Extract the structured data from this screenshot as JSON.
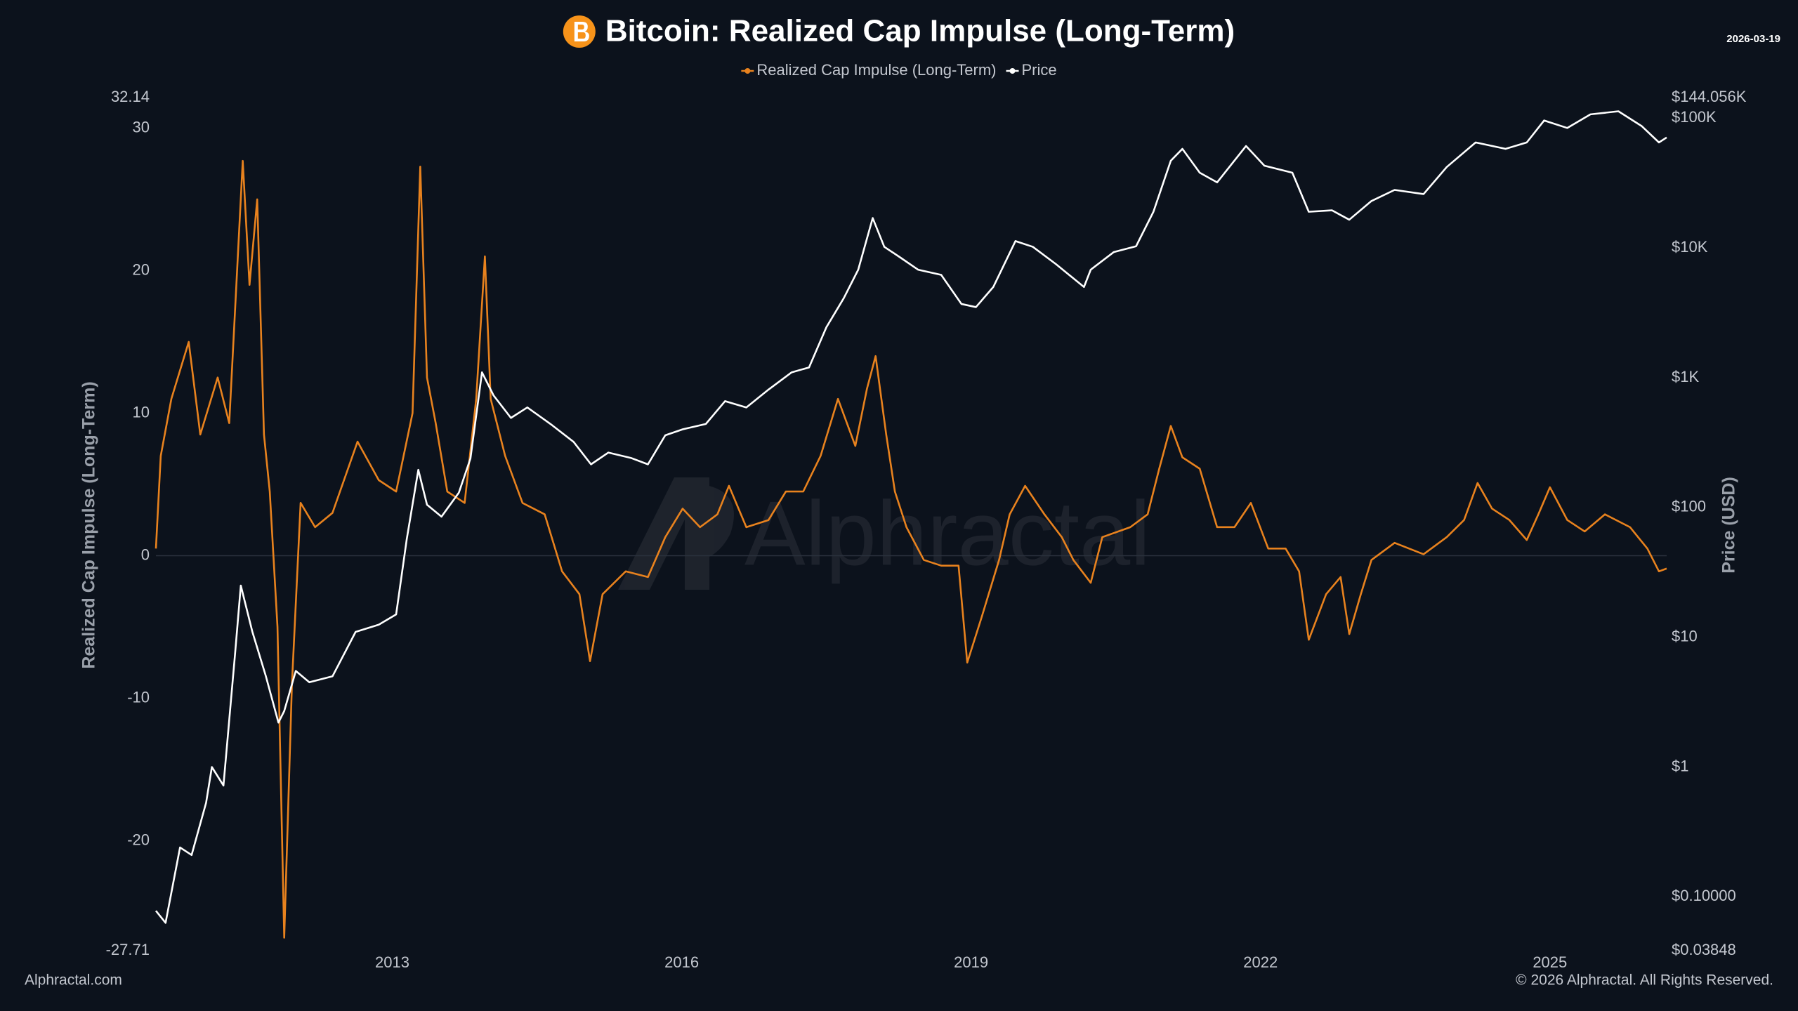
{
  "chart_data": {
    "type": "line",
    "title": "Bitcoin: Realized Cap Impulse (Long-Term)",
    "date": "2026-03-19",
    "watermark": "Alphractal",
    "source": "Alphractal.com",
    "copyright": "© 2026 Alphractal. All Rights Reserved.",
    "y_label": "Realized Cap Impulse (Long-Term)",
    "y2_label": "Price (USD)",
    "xlim": [
      2010.55,
      2026.21
    ],
    "xticks": [
      2013,
      2016,
      2019,
      2022,
      2025
    ],
    "ylim": [
      -27.71,
      32.14
    ],
    "yticks": [
      -27.71,
      -20,
      -10,
      0,
      10,
      20,
      30,
      32.14
    ],
    "y2lim": [
      0.03848,
      144056
    ],
    "y2scale": "log",
    "y2ticks": [
      {
        "value": 0.03848,
        "label": "$0.03848"
      },
      {
        "value": 0.1,
        "label": "$0.10000"
      },
      {
        "value": 1,
        "label": "$1"
      },
      {
        "value": 10,
        "label": "$10"
      },
      {
        "value": 100,
        "label": "$100"
      },
      {
        "value": 1000,
        "label": "$1K"
      },
      {
        "value": 10000,
        "label": "$10K"
      },
      {
        "value": 100000,
        "label": "$100K"
      },
      {
        "value": 144056,
        "label": "$144.056K"
      }
    ],
    "zero_line": true,
    "legend": "top",
    "series": [
      {
        "name": "Realized Cap Impulse (Long-Term)",
        "color": "#e8821e",
        "axis": "y",
        "x": [
          2010.55,
          2010.6,
          2010.71,
          2010.89,
          2011.01,
          2011.19,
          2011.31,
          2011.45,
          2011.52,
          2011.6,
          2011.67,
          2011.73,
          2011.81,
          2011.88,
          2011.96,
          2012.05,
          2012.2,
          2012.38,
          2012.64,
          2012.86,
          2013.04,
          2013.21,
          2013.29,
          2013.36,
          2013.45,
          2013.57,
          2013.75,
          2013.87,
          2013.96,
          2014.02,
          2014.17,
          2014.35,
          2014.58,
          2014.76,
          2014.94,
          2015.05,
          2015.18,
          2015.42,
          2015.65,
          2015.83,
          2016.01,
          2016.19,
          2016.37,
          2016.49,
          2016.67,
          2016.9,
          2017.08,
          2017.26,
          2017.44,
          2017.62,
          2017.8,
          2017.92,
          2018.01,
          2018.12,
          2018.21,
          2018.33,
          2018.51,
          2018.69,
          2018.87,
          2018.96,
          2019.11,
          2019.29,
          2019.4,
          2019.56,
          2019.76,
          2019.94,
          2020.06,
          2020.24,
          2020.36,
          2020.65,
          2020.83,
          2020.95,
          2021.07,
          2021.19,
          2021.37,
          2021.55,
          2021.73,
          2021.9,
          2022.08,
          2022.26,
          2022.4,
          2022.5,
          2022.68,
          2022.83,
          2022.92,
          2023.04,
          2023.15,
          2023.39,
          2023.69,
          2023.93,
          2024.11,
          2024.25,
          2024.4,
          2024.58,
          2024.76,
          2024.88,
          2025.0,
          2025.18,
          2025.36,
          2025.57,
          2025.83,
          2026.01,
          2026.13,
          2026.21
        ],
        "values": [
          0.5,
          7,
          11,
          15,
          8.5,
          12.5,
          9.3,
          27.7,
          19,
          25,
          8.5,
          4.5,
          -5,
          -26.8,
          -9,
          3.7,
          2,
          3,
          8,
          5.3,
          4.5,
          10,
          27.3,
          12.5,
          9.3,
          4.5,
          3.7,
          11,
          21,
          11,
          7,
          3.7,
          2.9,
          -1.1,
          -2.7,
          -7.4,
          -2.7,
          -1.1,
          -1.5,
          1.3,
          3.3,
          2,
          2.9,
          4.9,
          2,
          2.5,
          4.5,
          4.5,
          7,
          11,
          7.7,
          11.7,
          14,
          8.5,
          4.5,
          2,
          -0.3,
          -0.7,
          -0.7,
          -7.5,
          -4.3,
          -0.3,
          2.9,
          4.9,
          2.9,
          1.3,
          -0.3,
          -1.9,
          1.3,
          2,
          2.9,
          6.1,
          9.1,
          6.9,
          6.1,
          2,
          2,
          3.7,
          0.5,
          0.5,
          -1.1,
          -5.9,
          -2.7,
          -1.5,
          -5.5,
          -2.7,
          -0.3,
          0.9,
          0.1,
          1.3,
          2.5,
          5.1,
          3.3,
          2.5,
          1.1,
          2.9,
          4.8,
          2.5,
          1.7,
          2.9,
          2,
          0.5,
          -1.1,
          -0.9
        ]
      },
      {
        "name": "Price",
        "color": "#ffffff",
        "axis": "y2",
        "x": [
          2010.55,
          2010.65,
          2010.8,
          2010.92,
          2011.07,
          2011.13,
          2011.25,
          2011.37,
          2011.43,
          2011.55,
          2011.69,
          2011.82,
          2011.88,
          2012.0,
          2012.14,
          2012.38,
          2012.62,
          2012.86,
          2013.04,
          2013.15,
          2013.27,
          2013.36,
          2013.51,
          2013.69,
          2013.81,
          2013.93,
          2014.05,
          2014.23,
          2014.4,
          2014.64,
          2014.88,
          2015.06,
          2015.24,
          2015.48,
          2015.65,
          2015.83,
          2016.01,
          2016.25,
          2016.45,
          2016.67,
          2016.9,
          2017.14,
          2017.32,
          2017.5,
          2017.68,
          2017.83,
          2017.98,
          2018.1,
          2018.27,
          2018.45,
          2018.69,
          2018.9,
          2019.05,
          2019.23,
          2019.46,
          2019.64,
          2019.88,
          2020.17,
          2020.24,
          2020.48,
          2020.71,
          2020.89,
          2021.07,
          2021.19,
          2021.37,
          2021.55,
          2021.85,
          2022.04,
          2022.33,
          2022.5,
          2022.74,
          2022.92,
          2023.15,
          2023.39,
          2023.69,
          2023.93,
          2024.23,
          2024.54,
          2024.76,
          2024.94,
          2025.18,
          2025.42,
          2025.71,
          2025.95,
          2026.13,
          2026.21
        ],
        "values": [
          0.078,
          0.063,
          0.24,
          0.21,
          0.53,
          1,
          0.72,
          7.4,
          25,
          11,
          5,
          2.2,
          2.7,
          5.5,
          4.5,
          5,
          11,
          12.5,
          15,
          57,
          195,
          105,
          85,
          130,
          238,
          1100,
          730,
          490,
          590,
          440,
          320,
          215,
          265,
          240,
          215,
          360,
          400,
          440,
          660,
          590,
          810,
          1100,
          1200,
          2450,
          4100,
          6800,
          17000,
          10200,
          8400,
          6800,
          6200,
          3700,
          3500,
          5000,
          11300,
          10200,
          7500,
          5000,
          6800,
          9300,
          10300,
          19000,
          47000,
          58000,
          38000,
          32000,
          61000,
          43000,
          38000,
          19000,
          19500,
          16500,
          23000,
          28000,
          26000,
          42000,
          65000,
          58000,
          65000,
          96000,
          84000,
          107000,
          113000,
          87000,
          65000,
          71000
        ]
      }
    ]
  }
}
